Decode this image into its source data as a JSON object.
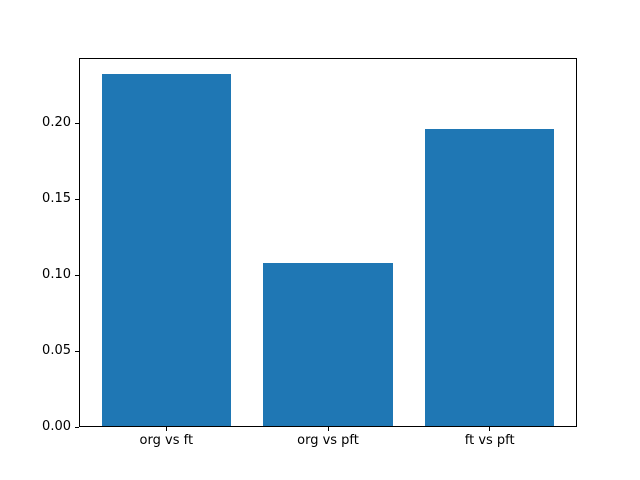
{
  "figure": {
    "background": "#ffffff",
    "spine_color": "#000000",
    "text_color": "#000000"
  },
  "chart_data": {
    "type": "bar",
    "title": "",
    "xlabel": "",
    "ylabel": "",
    "categories": [
      "org vs ft",
      "org vs pft",
      "ft vs pft"
    ],
    "values": [
      0.232,
      0.108,
      0.196
    ],
    "bar_color": "#1f77b4",
    "bar_width_fraction": 0.8,
    "ylim": [
      0,
      0.2428
    ],
    "xlim": [
      -0.54,
      2.54
    ],
    "yticks": [
      0.0,
      0.05,
      0.1,
      0.15,
      0.2
    ],
    "ytick_labels": [
      "0.00",
      "0.05",
      "0.10",
      "0.15",
      "0.20"
    ],
    "grid": false,
    "legend": null
  }
}
